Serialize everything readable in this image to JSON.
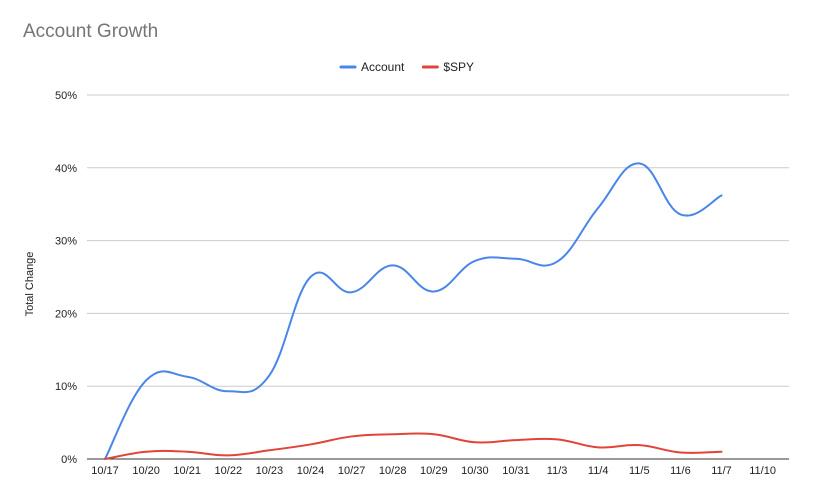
{
  "chart_data": {
    "type": "line",
    "title": "Account Growth",
    "ylabel": "Total Change",
    "xlabel": "",
    "ylim": [
      0,
      50
    ],
    "y_ticks": [
      "0%",
      "10%",
      "20%",
      "30%",
      "40%",
      "50%"
    ],
    "y_tick_values": [
      0,
      10,
      20,
      30,
      40,
      50
    ],
    "categories": [
      "10/17",
      "10/20",
      "10/21",
      "10/22",
      "10/23",
      "10/24",
      "10/27",
      "10/28",
      "10/29",
      "10/30",
      "10/31",
      "11/3",
      "11/4",
      "11/5",
      "11/6",
      "11/7",
      "11/10"
    ],
    "grid": true,
    "legend_position": "top-center",
    "series": [
      {
        "name": "Account",
        "color": "#4a86e8",
        "values": [
          0,
          10.8,
          11.3,
          9.3,
          11.5,
          25.0,
          22.9,
          26.6,
          23.0,
          27.2,
          27.5,
          27.1,
          34.5,
          40.6,
          33.6,
          36.2,
          null
        ]
      },
      {
        "name": "$SPY",
        "color": "#e0443a",
        "values": [
          0,
          1.0,
          1.0,
          0.5,
          1.2,
          2.0,
          3.1,
          3.4,
          3.4,
          2.3,
          2.6,
          2.7,
          1.6,
          1.9,
          0.9,
          1.0,
          null
        ]
      }
    ]
  }
}
